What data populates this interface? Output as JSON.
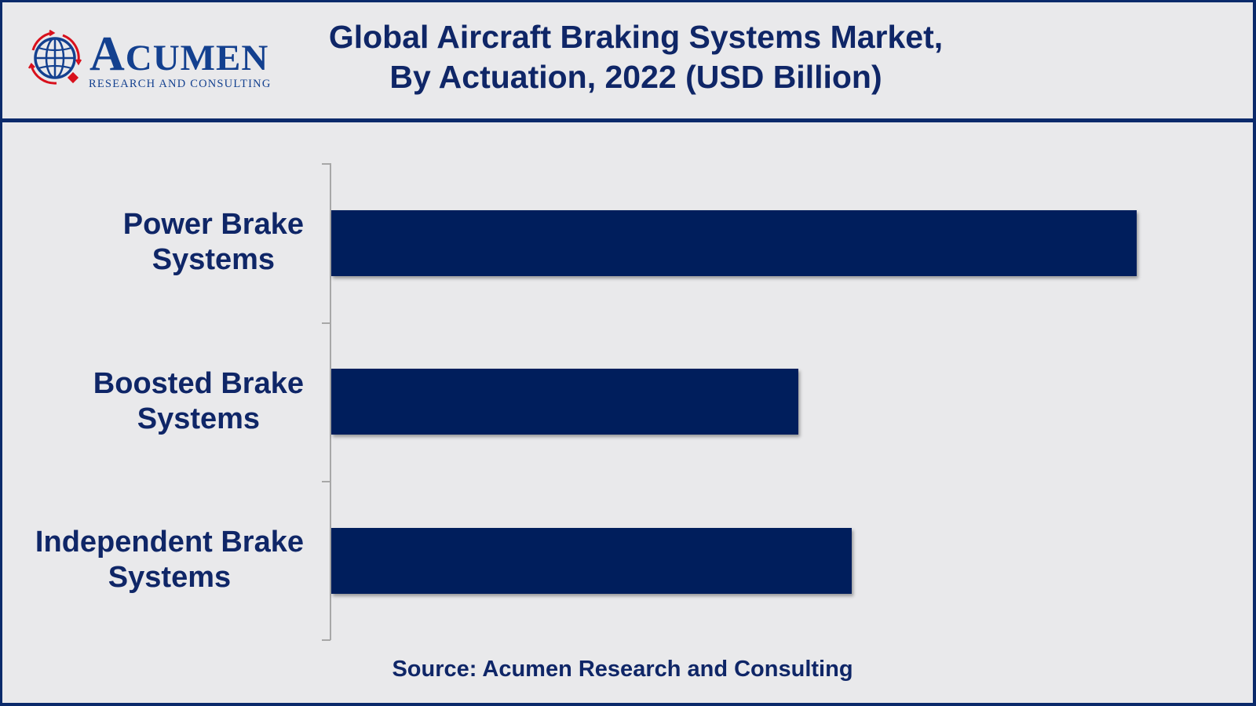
{
  "logo": {
    "wordmark_first": "A",
    "wordmark_rest": "CUMEN",
    "tagline": "RESEARCH AND CONSULTING",
    "icon": "globe-icon",
    "colors": {
      "blue": "#13408f",
      "red": "#d8101c"
    }
  },
  "header": {
    "title_line1": "Global Aircraft Braking Systems Market,",
    "title_line2": "By Actuation, 2022 (USD Billion)"
  },
  "footer": {
    "source": "Source: Acumen Research and Consulting"
  },
  "colors": {
    "background": "#e9e9eb",
    "frame": "#0b2a6b",
    "bar": "#001e5c",
    "text": "#0f2667",
    "axis": "#a7a7a7"
  },
  "chart_data": {
    "type": "bar",
    "orientation": "horizontal",
    "title": "Global Aircraft Braking Systems Market, By Actuation, 2022 (USD Billion)",
    "xlabel": "",
    "ylabel": "",
    "categories": [
      "Power Brake Systems",
      "Boosted Brake Systems",
      "Independent Brake Systems"
    ],
    "category_lines": [
      [
        "Power Brake",
        "Systems"
      ],
      [
        "Boosted Brake",
        "Systems"
      ],
      [
        "Independent Brake",
        "Systems"
      ]
    ],
    "values": [
      4.5,
      2.61,
      2.91
    ],
    "value_note": "Values estimated from relative bar lengths; no value axis or data labels shown",
    "xlim": [
      0,
      5.0
    ],
    "grid": false,
    "legend": null,
    "x_axis_visible": false,
    "source": "Source: Acumen Research and Consulting"
  }
}
